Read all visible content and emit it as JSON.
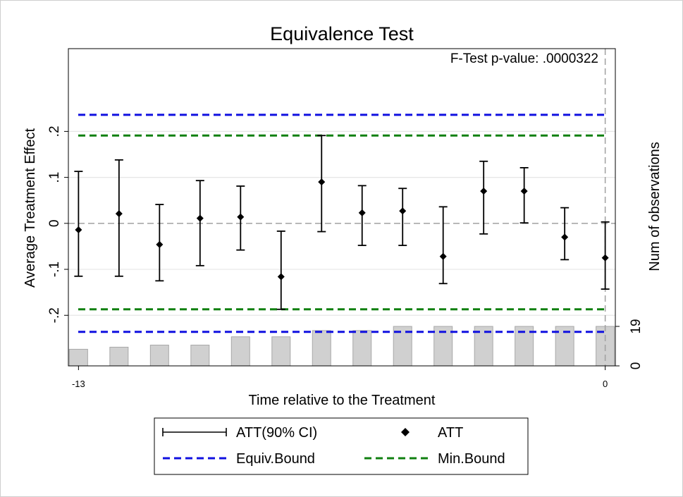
{
  "chart_data": {
    "type": "scatter",
    "title": "Equivalence Test",
    "annotation": "F-Test p-value: .0000322",
    "xlabel": "Time relative to the Treatment",
    "ylabel": "Average Treatment Effect",
    "y2label": "Num of observations",
    "xlim": [
      -13.25,
      0.25
    ],
    "ylim": [
      -0.31,
      0.38
    ],
    "x_tick_labels": [
      "-13",
      "0"
    ],
    "x_tick_values": [
      -13,
      0
    ],
    "y_ticks": [
      -0.2,
      -0.1,
      0,
      0.1,
      0.2
    ],
    "y_tick_labels": [
      "-.2",
      "-.1",
      "0",
      ".1",
      ".2"
    ],
    "y2_ticks": [
      0,
      19
    ],
    "y2_tick_labels": [
      "0",
      "19"
    ],
    "grid": true,
    "legend_position": "bottom",
    "series": [
      {
        "name": "ATT",
        "x": [
          -13,
          -12,
          -11,
          -10,
          -9,
          -8,
          -7,
          -6,
          -5,
          -4,
          -3,
          -2,
          -1,
          0
        ],
        "y": [
          -0.014,
          0.021,
          -0.046,
          0.011,
          0.014,
          -0.116,
          0.09,
          0.023,
          0.027,
          -0.072,
          0.07,
          0.07,
          -0.03,
          -0.075
        ],
        "ci_low": [
          -0.115,
          -0.115,
          -0.125,
          -0.092,
          -0.058,
          -0.187,
          -0.018,
          -0.048,
          -0.048,
          -0.131,
          -0.023,
          0.001,
          -0.079,
          -0.143
        ],
        "ci_high": [
          0.113,
          0.138,
          0.041,
          0.093,
          0.081,
          -0.017,
          0.191,
          0.082,
          0.076,
          0.036,
          0.135,
          0.121,
          0.034,
          0.003
        ]
      }
    ],
    "observations": {
      "x": [
        -13,
        -12,
        -11,
        -10,
        -9,
        -8,
        -7,
        -6,
        -5,
        -4,
        -3,
        -2,
        -1,
        0
      ],
      "values": [
        8,
        9,
        10,
        10,
        14,
        14,
        17,
        17,
        19,
        19,
        19,
        19,
        19,
        19
      ]
    },
    "equiv_bound": [
      -0.236,
      0.236
    ],
    "min_bound": [
      -0.187,
      0.191
    ],
    "reference_lines": {
      "y": 0,
      "x": 0
    },
    "legend": {
      "ci": "ATT(90% CI)",
      "att": "ATT",
      "equiv": "Equiv.Bound",
      "min": "Min.Bound"
    },
    "colors": {
      "points": "#000000",
      "equiv": "#1010e0",
      "min": "#108010",
      "bars": "#d0d0d0",
      "bar_edge": "#a8a8a8",
      "refline": "#a0a0a0",
      "grid": "#e6e6e6"
    }
  }
}
